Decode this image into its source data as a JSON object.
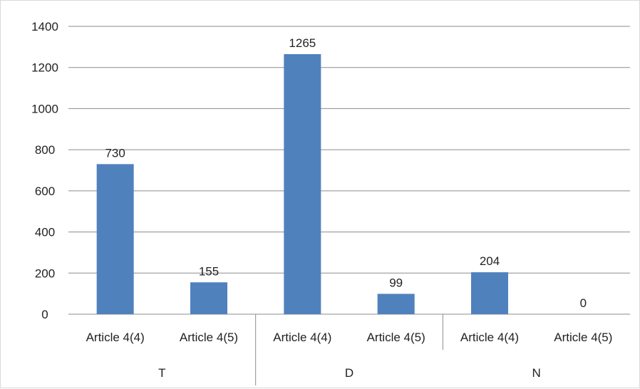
{
  "chart_data": {
    "type": "bar",
    "title": "",
    "xlabel": "",
    "ylabel": "",
    "ylim": [
      0,
      1400
    ],
    "yticks": [
      0,
      200,
      400,
      600,
      800,
      1000,
      1200,
      1400
    ],
    "grid": true,
    "legend": "none",
    "bar_color": "#4f81bd",
    "groups": [
      {
        "label": "T",
        "subcategories": [
          "Article 4(4)",
          "Article 4(5)"
        ]
      },
      {
        "label": "D",
        "subcategories": [
          "Article 4(4)",
          "Article 4(5)"
        ]
      },
      {
        "label": "N",
        "subcategories": [
          "Article 4(4)",
          "Article 4(5)"
        ]
      }
    ],
    "categories": [
      "Article 4(4)",
      "Article 4(5)",
      "Article 4(4)",
      "Article 4(5)",
      "Article 4(4)",
      "Article 4(5)"
    ],
    "values": [
      730,
      155,
      1265,
      99,
      204,
      0
    ],
    "data_labels": [
      "730",
      "155",
      "1265",
      "99",
      "204",
      "0"
    ]
  }
}
